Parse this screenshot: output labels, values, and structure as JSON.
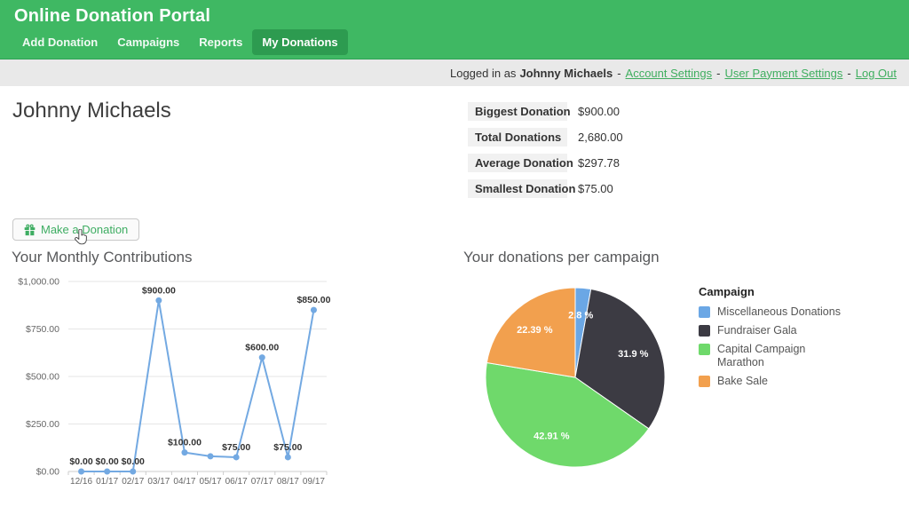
{
  "header": {
    "title": "Online Donation Portal",
    "nav": [
      {
        "label": "Add Donation",
        "active": false
      },
      {
        "label": "Campaigns",
        "active": false
      },
      {
        "label": "Reports",
        "active": false
      },
      {
        "label": "My Donations",
        "active": true
      }
    ]
  },
  "user_bar": {
    "prefix": "Logged in as",
    "username": "Johnny Michaels",
    "separator": "-",
    "links": [
      {
        "label": "Account Settings"
      },
      {
        "label": "User Payment Settings"
      },
      {
        "label": "Log Out"
      }
    ]
  },
  "page": {
    "user_heading": "Johnny Michaels",
    "make_donation_label": "Make a Donation"
  },
  "stats": [
    {
      "label": "Biggest Donation",
      "value": "$900.00"
    },
    {
      "label": "Total Donations",
      "value": "2,680.00"
    },
    {
      "label": "Average Donation",
      "value": "$297.78"
    },
    {
      "label": "Smallest Donation",
      "value": "$75.00"
    }
  ],
  "chart_data": [
    {
      "type": "line",
      "title": "Your Monthly Contributions",
      "x": [
        "12/16",
        "01/17",
        "02/17",
        "03/17",
        "04/17",
        "05/17",
        "06/17",
        "07/17",
        "08/17",
        "09/17"
      ],
      "values": [
        0,
        0,
        0,
        900,
        100,
        80,
        75,
        600,
        75,
        850
      ],
      "point_labels": [
        "$0.00",
        "$0.00",
        "$0.00",
        "$900.00",
        "$100.00",
        "",
        "$75.00",
        "$600.00",
        "$75.00",
        "$850.00"
      ],
      "y_ticks": [
        "$0.00",
        "$250.00",
        "$500.00",
        "$750.00",
        "$1,000.00"
      ],
      "ylim": [
        0,
        1000
      ],
      "xlabel": "",
      "ylabel": "",
      "grid": true,
      "line_color": "#73A9E2",
      "label_color": "#333333",
      "axis_text_color": "#666666"
    },
    {
      "type": "pie",
      "title": "Your donations per campaign",
      "legend_title": "Campaign",
      "legend_position": "right",
      "slices": [
        {
          "label": "Miscellaneous Donations",
          "pct": 2.8,
          "pct_label": "2.8 %",
          "color": "#6BA7E5"
        },
        {
          "label": "Fundraiser Gala",
          "pct": 31.9,
          "pct_label": "31.9 %",
          "color": "#3C3B43"
        },
        {
          "label": "Capital Campaign Marathon",
          "pct": 42.91,
          "pct_label": "42.91 %",
          "color": "#6FD96B"
        },
        {
          "label": "Bake Sale",
          "pct": 22.39,
          "pct_label": "22.39 %",
          "color": "#F2A04E"
        }
      ]
    }
  ],
  "colors": {
    "header_green": "#3FB863",
    "active_tab_green": "#2D9B50",
    "link_green": "#3FAE5F",
    "user_bar_gray": "#E9E9E9",
    "stat_label_bg": "#F1F1F1"
  }
}
